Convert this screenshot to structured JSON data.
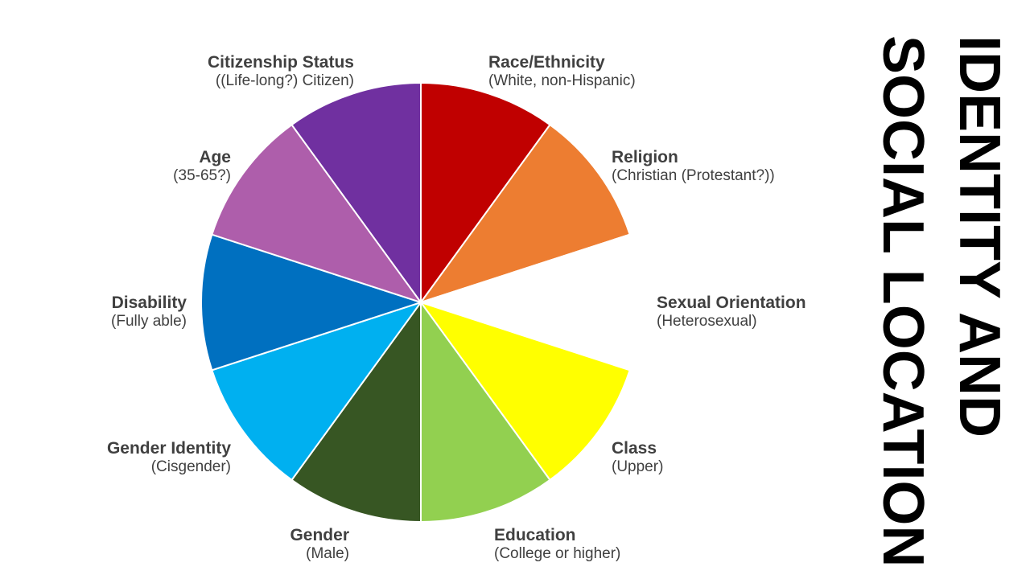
{
  "title_lines": [
    "IDENTITY AND",
    "SOCIAL LOCATION"
  ],
  "segments": [
    {
      "id": "race",
      "title": "Race/Ethnicity",
      "subtitle": "(White, non-Hispanic)",
      "color": "#C00000"
    },
    {
      "id": "religion",
      "title": "Religion",
      "subtitle": "(Christian (Protestant?))",
      "color": "#ED7D31"
    },
    {
      "id": "sexual-orientation",
      "title": "Sexual Orientation",
      "subtitle": "(Heterosexual)",
      "color": "#FFFFFF"
    },
    {
      "id": "class",
      "title": "Class",
      "subtitle": "(Upper)",
      "color": "#FFFF00"
    },
    {
      "id": "education",
      "title": "Education",
      "subtitle": "(College or higher)",
      "color": "#92D050"
    },
    {
      "id": "gender",
      "title": "Gender",
      "subtitle": "(Male)",
      "color": "#375623"
    },
    {
      "id": "gender-identity",
      "title": "Gender Identity",
      "subtitle": "(Cisgender)",
      "color": "#00B0F0"
    },
    {
      "id": "disability",
      "title": "Disability",
      "subtitle": "(Fully able)",
      "color": "#0070C0"
    },
    {
      "id": "age",
      "title": "Age",
      "subtitle": "(35-65?)",
      "color": "#AE5EAB"
    },
    {
      "id": "citizenship",
      "title": "Citizenship Status",
      "subtitle": "((Life-long?) Citizen)",
      "color": "#7030A0"
    }
  ]
}
